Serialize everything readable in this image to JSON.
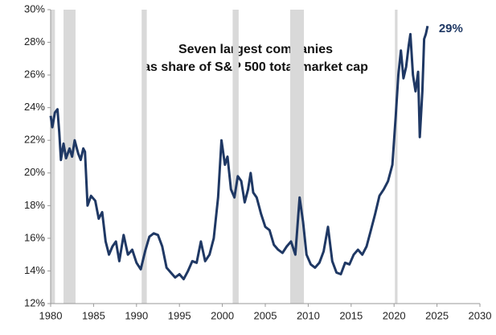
{
  "chart_data": {
    "type": "line",
    "title": [
      "Seven largest companies",
      "as share of S&P 500 total market cap"
    ],
    "xlim": [
      1980,
      2030
    ],
    "xticks": [
      1980,
      1985,
      1990,
      1995,
      2000,
      2005,
      2010,
      2015,
      2020,
      2025,
      2030
    ],
    "ylim": [
      12,
      30
    ],
    "yticks": [
      {
        "value": 12,
        "label": "12%"
      },
      {
        "value": 14,
        "label": "14%"
      },
      {
        "value": 16,
        "label": "16%"
      },
      {
        "value": 18,
        "label": "18%"
      },
      {
        "value": 20,
        "label": "20%"
      },
      {
        "value": 22,
        "label": "22%"
      },
      {
        "value": 24,
        "label": "24%"
      },
      {
        "value": 26,
        "label": "26%"
      },
      {
        "value": 28,
        "label": "28%"
      },
      {
        "value": 30,
        "label": "30%"
      }
    ],
    "shaded_ranges": [
      [
        1980.0,
        1980.5
      ],
      [
        1981.5,
        1982.9
      ],
      [
        1990.6,
        1991.2
      ],
      [
        2001.2,
        2001.9
      ],
      [
        2007.9,
        2009.5
      ],
      [
        2020.1,
        2020.4
      ]
    ],
    "shade_color": "#d9d9d9",
    "series": [
      {
        "color": "#1f3864",
        "x": [
          1980.0,
          1980.2,
          1980.5,
          1980.8,
          1981.0,
          1981.2,
          1981.5,
          1981.8,
          1982.2,
          1982.5,
          1982.8,
          1983.2,
          1983.5,
          1983.8,
          1984.0,
          1984.3,
          1984.7,
          1985.2,
          1985.6,
          1986.0,
          1986.4,
          1986.8,
          1987.2,
          1987.6,
          1988.0,
          1988.5,
          1989.0,
          1989.5,
          1990.0,
          1990.5,
          1991.0,
          1991.5,
          1992.0,
          1992.5,
          1993.0,
          1993.5,
          1994.0,
          1994.5,
          1995.0,
          1995.5,
          1996.0,
          1996.5,
          1997.0,
          1997.5,
          1998.0,
          1998.5,
          1999.0,
          1999.5,
          1999.9,
          2000.3,
          2000.6,
          2001.0,
          2001.4,
          2001.8,
          2002.2,
          2002.6,
          2003.0,
          2003.3,
          2003.6,
          2004.0,
          2004.5,
          2005.0,
          2005.5,
          2006.0,
          2006.5,
          2007.0,
          2007.5,
          2008.0,
          2008.5,
          2009.0,
          2009.4,
          2009.8,
          2010.3,
          2010.8,
          2011.3,
          2011.8,
          2012.3,
          2012.8,
          2013.3,
          2013.8,
          2014.3,
          2014.8,
          2015.3,
          2015.8,
          2016.3,
          2016.8,
          2017.3,
          2017.8,
          2018.3,
          2018.8,
          2019.3,
          2019.8,
          2020.2,
          2020.5,
          2020.8,
          2021.1,
          2021.4,
          2021.7,
          2021.9,
          2022.2,
          2022.5,
          2022.8,
          2023.0,
          2023.3,
          2023.5,
          2023.7,
          2023.9
        ],
        "values": [
          23.5,
          22.8,
          23.7,
          23.9,
          22.5,
          20.8,
          21.8,
          20.9,
          21.5,
          21.0,
          22.0,
          21.2,
          20.8,
          21.5,
          21.3,
          18.0,
          18.6,
          18.3,
          17.2,
          17.6,
          15.8,
          15.0,
          15.5,
          15.8,
          14.6,
          16.2,
          15.0,
          15.3,
          14.5,
          14.1,
          15.2,
          16.1,
          16.3,
          16.2,
          15.5,
          14.2,
          13.9,
          13.6,
          13.8,
          13.5,
          14.0,
          14.6,
          14.5,
          15.8,
          14.6,
          15.0,
          16.0,
          18.5,
          22.0,
          20.5,
          21.0,
          19.0,
          18.5,
          19.8,
          19.5,
          18.2,
          19.0,
          20.0,
          18.8,
          18.5,
          17.5,
          16.7,
          16.5,
          15.6,
          15.3,
          15.1,
          15.5,
          15.8,
          15.0,
          18.5,
          17.0,
          15.0,
          14.4,
          14.2,
          14.5,
          15.2,
          16.7,
          14.6,
          13.9,
          13.8,
          14.5,
          14.4,
          15.0,
          15.3,
          15.0,
          15.5,
          16.5,
          17.5,
          18.6,
          19.0,
          19.5,
          20.5,
          23.5,
          26.0,
          27.5,
          25.8,
          26.5,
          27.8,
          28.5,
          26.0,
          25.0,
          26.2,
          22.2,
          25.0,
          28.2,
          28.5,
          29.0
        ]
      }
    ],
    "annotations": [
      {
        "text": "29%",
        "x": 2023.9,
        "y": 29
      }
    ]
  }
}
